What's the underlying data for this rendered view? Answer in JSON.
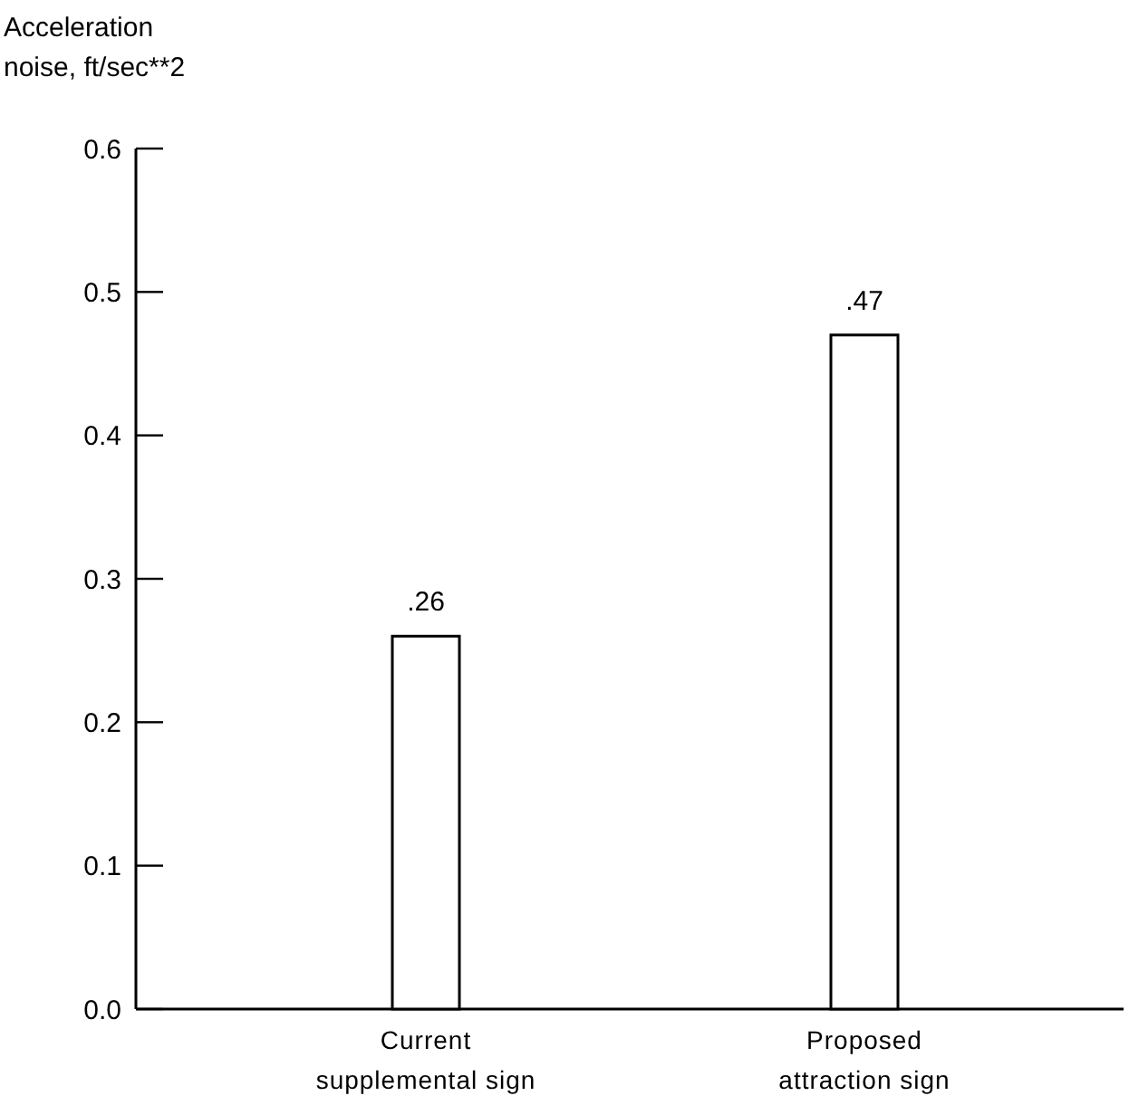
{
  "chart_data": {
    "type": "bar",
    "ylabel": "Acceleration noise,  ft/sec**2",
    "categories": [
      "Current supplemental sign",
      "Proposed attraction sign"
    ],
    "values": [
      0.26,
      0.47
    ],
    "value_labels": [
      ".26",
      ".47"
    ],
    "color": "#ffffff",
    "ylim": [
      0,
      0.6
    ],
    "yticks": [
      {
        "value": 0,
        "label": "0.0"
      },
      0.1,
      0.2,
      0.3,
      0.4,
      0.5,
      0.6
    ],
    "grid": false
  }
}
